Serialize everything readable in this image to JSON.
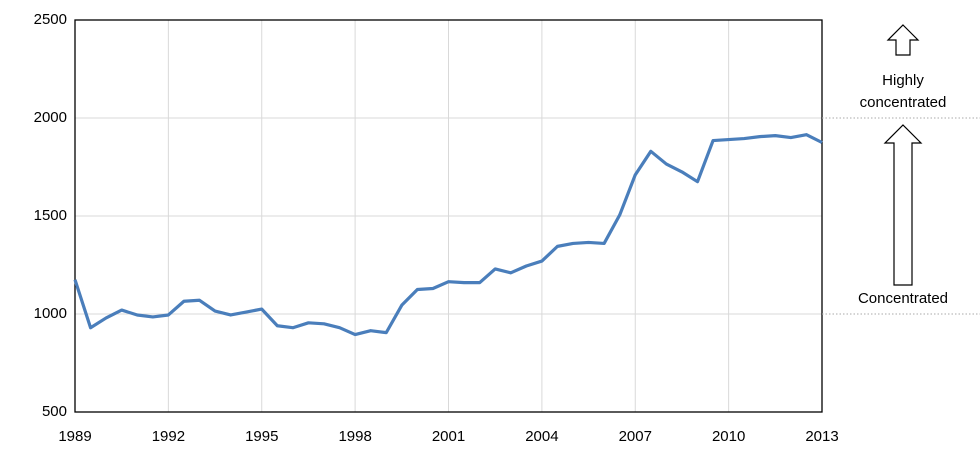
{
  "chart_data": {
    "type": "line",
    "x": [
      1989,
      1989.5,
      1990,
      1990.5,
      1991,
      1991.5,
      1992,
      1992.5,
      1993,
      1993.5,
      1994,
      1994.5,
      1995,
      1995.5,
      1996,
      1996.5,
      1997,
      1997.5,
      1998,
      1998.5,
      1999,
      1999.5,
      2000,
      2000.5,
      2001,
      2001.5,
      2002,
      2002.5,
      2003,
      2003.5,
      2004,
      2004.5,
      2005,
      2005.5,
      2006,
      2006.5,
      2007,
      2007.5,
      2008,
      2008.5,
      2009,
      2009.5,
      2010,
      2010.5,
      2011,
      2011.5,
      2012,
      2012.5,
      2013
    ],
    "series": [
      {
        "color": "#4a7ebb",
        "values": [
          1175,
          930,
          980,
          1020,
          995,
          985,
          995,
          1065,
          1070,
          1015,
          995,
          1010,
          1025,
          940,
          930,
          955,
          950,
          930,
          895,
          915,
          905,
          1045,
          1125,
          1130,
          1165,
          1160,
          1160,
          1230,
          1210,
          1245,
          1270,
          1345,
          1360,
          1365,
          1360,
          1505,
          1710,
          1830,
          1765,
          1725,
          1675,
          1885,
          1890,
          1895,
          1905,
          1910,
          1900,
          1915,
          1875
        ]
      }
    ],
    "xlim": [
      1989,
      2013
    ],
    "xticks": [
      1989,
      1992,
      1995,
      1998,
      2001,
      2004,
      2007,
      2010,
      2013
    ],
    "ylim": [
      500,
      2500
    ],
    "yticks": [
      500,
      1000,
      1500,
      2000,
      2500
    ],
    "grid": true,
    "thresholds": [
      {
        "value": 1000,
        "label": "Concentrated"
      },
      {
        "value": 2000,
        "label": "Highly concentrated"
      }
    ]
  }
}
